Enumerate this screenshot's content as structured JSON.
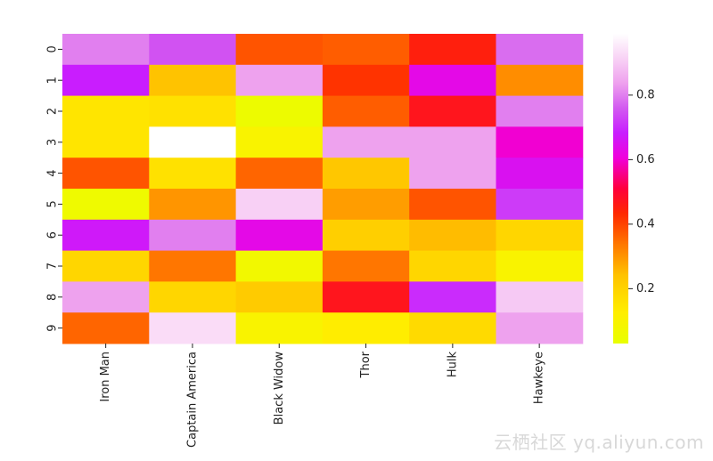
{
  "chart_data": {
    "type": "heatmap",
    "title": "",
    "xlabel": "",
    "ylabel": "",
    "columns": [
      "Iron Man",
      "Captain America",
      "Black Widow",
      "Thor",
      "Hulk",
      "Hawkeye"
    ],
    "rows": [
      "0",
      "1",
      "2",
      "3",
      "4",
      "5",
      "6",
      "7",
      "8",
      "9"
    ],
    "values": [
      [
        0.8,
        0.75,
        0.38,
        0.37,
        0.45,
        0.78
      ],
      [
        0.68,
        0.24,
        0.84,
        0.42,
        0.63,
        0.31
      ],
      [
        0.15,
        0.16,
        0.05,
        0.37,
        0.47,
        0.8
      ],
      [
        0.15,
        0.99,
        0.1,
        0.84,
        0.84,
        0.6
      ],
      [
        0.38,
        0.16,
        0.36,
        0.23,
        0.84,
        0.65
      ],
      [
        0.06,
        0.3,
        0.91,
        0.29,
        0.38,
        0.72
      ],
      [
        0.67,
        0.8,
        0.63,
        0.21,
        0.25,
        0.19
      ],
      [
        0.19,
        0.34,
        0.07,
        0.34,
        0.19,
        0.1
      ],
      [
        0.84,
        0.19,
        0.22,
        0.47,
        0.7,
        0.9
      ],
      [
        0.36,
        0.93,
        0.1,
        0.13,
        0.18,
        0.84
      ]
    ],
    "colormap": "gnuplot2_r-like (yellow → orange → red → magenta → purple → white)",
    "colorbar": {
      "range": [
        0.03,
        0.99
      ],
      "ticks": [
        0.2,
        0.4,
        0.6,
        0.8
      ],
      "tick_labels": [
        "0.2",
        "0.4",
        "0.6",
        "0.8"
      ]
    }
  },
  "watermark": "云栖社区 yq.aliyun.com"
}
